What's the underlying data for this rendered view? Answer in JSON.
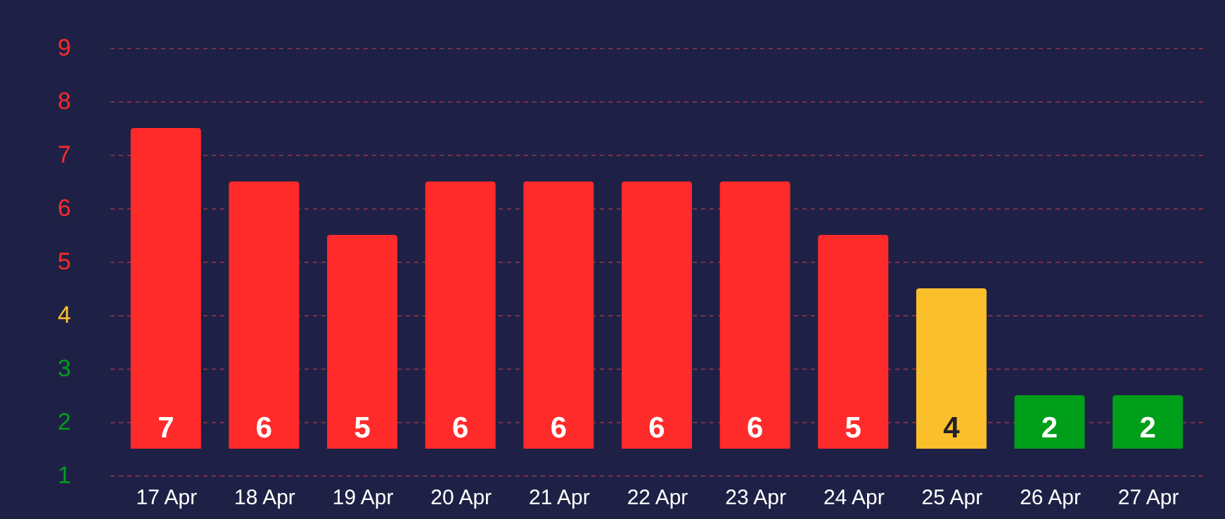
{
  "chart_data": {
    "type": "bar",
    "categories": [
      "17 Apr",
      "18 Apr",
      "19 Apr",
      "20 Apr",
      "21 Apr",
      "22 Apr",
      "23 Apr",
      "24 Apr",
      "25 Apr",
      "26 Apr",
      "27 Apr"
    ],
    "base": [
      1.5,
      1.5,
      1.5,
      1.5,
      1.5,
      1.5,
      1.5,
      1.5,
      1.5,
      1.5,
      1.5
    ],
    "values": [
      6,
      5,
      4,
      5,
      5,
      5,
      5,
      4,
      3,
      1,
      1
    ],
    "value_labels": [
      "7",
      "6",
      "5",
      "6",
      "6",
      "6",
      "6",
      "5",
      "4",
      "2",
      "2"
    ],
    "colors": [
      "#ff2a2a",
      "#ff2a2a",
      "#ff2a2a",
      "#ff2a2a",
      "#ff2a2a",
      "#ff2a2a",
      "#ff2a2a",
      "#ff2a2a",
      "#fcbf2c",
      "#009f1a",
      "#009f1a"
    ],
    "ylim": [
      1,
      9
    ],
    "yticks": [
      1,
      2,
      3,
      4,
      5,
      6,
      7,
      8,
      9
    ],
    "grid": "y"
  }
}
